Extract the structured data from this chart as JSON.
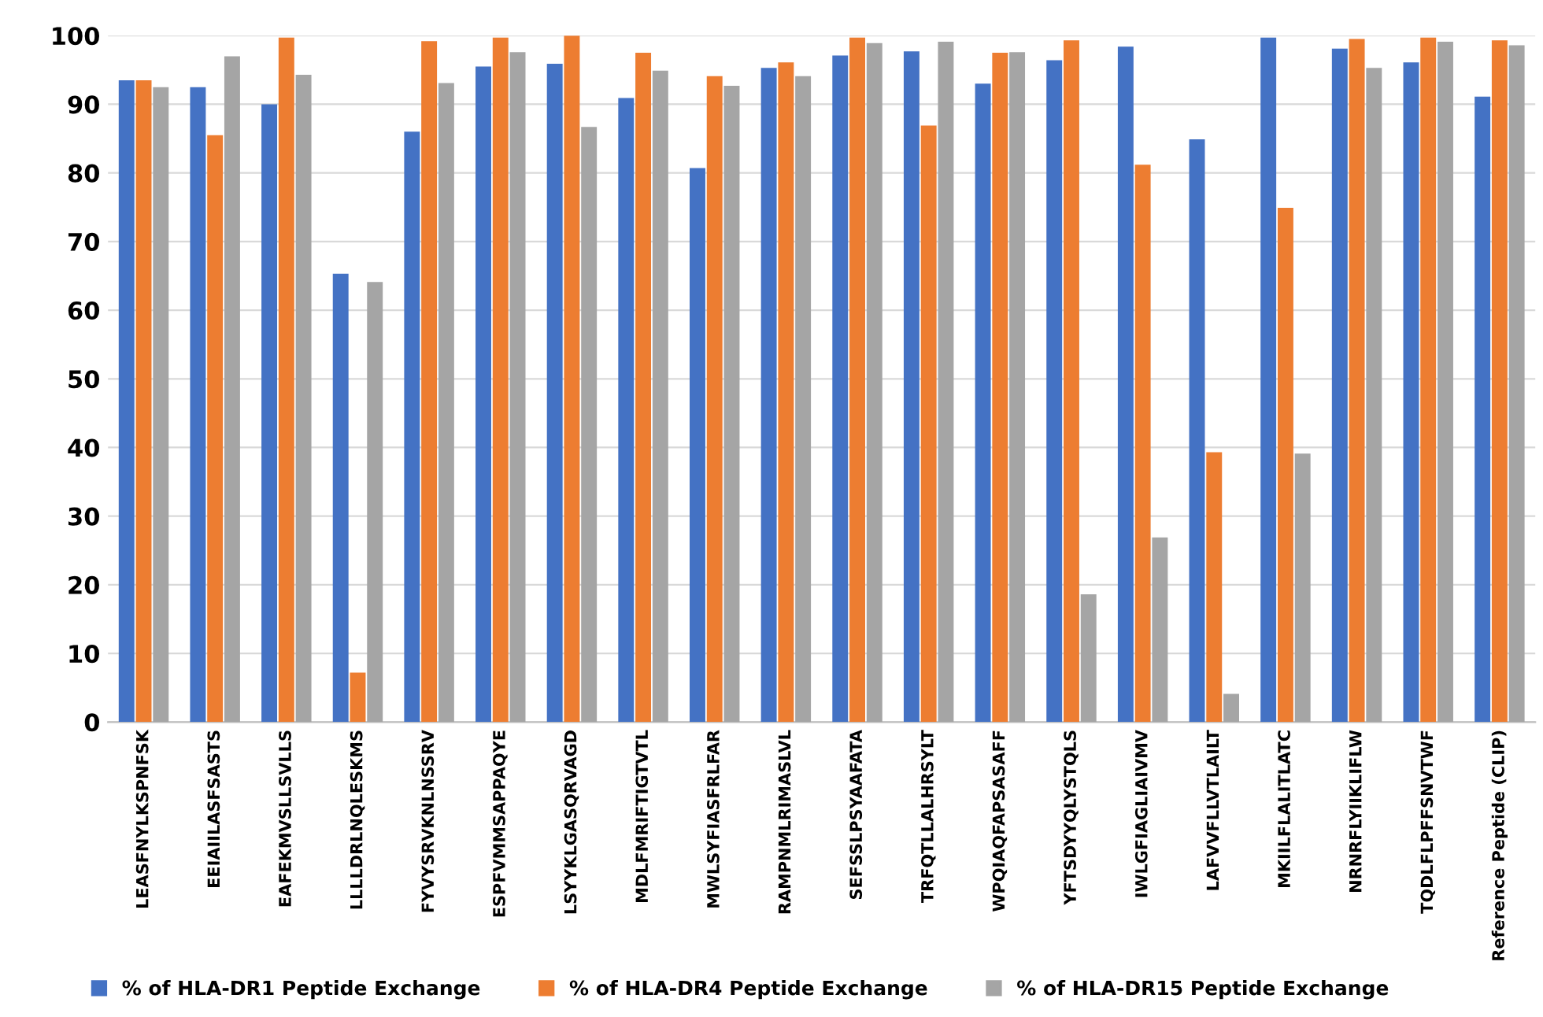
{
  "chart_data": {
    "type": "bar",
    "categories": [
      "LEASFNYLKSPNFSK",
      "EEIAIILASFSASTS",
      "EAFEKMVSLLSVLLS",
      "LLLLDRLNQLESKMS",
      "FYVYSRVKNLNSSRV",
      "ESPFVMMSAPPAQYE",
      "LSYYKLGASQRVAGD",
      "MDLFMRIFTIGTVTL",
      "MWLSYFIASFRLFAR",
      "RAMPNMLRIMASLVL",
      "SEFSSLPSYAAFATA",
      "TRFQTLLALHRSYLT",
      "WPQIAQFAPSASAFF",
      "YFTSDYYQLYSTQLS",
      "IWLGFIAGLIAIVMV",
      "LAFVVFLLVTLAILT",
      "MKIILFLALITLATC",
      "NRNRFLYIIKLIFLW",
      "TQDLFLPFFSNVTWF",
      "Reference Peptide (CLIP)"
    ],
    "series": [
      {
        "name": "% of HLA-DR1 Peptide Exchange",
        "color": "#4472c4",
        "values": [
          93.5,
          92.5,
          90,
          65.3,
          86,
          95.5,
          95.9,
          90.9,
          80.7,
          95.3,
          97.1,
          97.7,
          93,
          96.4,
          98.4,
          84.9,
          99.7,
          98.1,
          96.1,
          91.1
        ]
      },
      {
        "name": "% of HLA-DR4 Peptide Exchange",
        "color": "#ed7d31",
        "values": [
          93.5,
          85.5,
          99.7,
          7.2,
          99.2,
          99.7,
          100,
          97.5,
          94.1,
          96.1,
          99.7,
          86.9,
          97.5,
          99.3,
          81.2,
          39.3,
          74.9,
          99.5,
          99.7,
          99.3
        ]
      },
      {
        "name": "% of HLA-DR15 Peptide Exchange",
        "color": "#a5a5a5",
        "values": [
          92.5,
          97,
          94.3,
          64.1,
          93.1,
          97.6,
          86.7,
          94.9,
          92.7,
          94.1,
          98.9,
          99.1,
          97.6,
          18.6,
          26.9,
          4.1,
          39.1,
          95.3,
          99.1,
          98.6
        ]
      }
    ],
    "ylim": [
      0,
      100
    ],
    "yticks": [
      0,
      10,
      20,
      30,
      40,
      50,
      60,
      70,
      80,
      90,
      100
    ],
    "grid": "y",
    "legend": "bottom"
  }
}
